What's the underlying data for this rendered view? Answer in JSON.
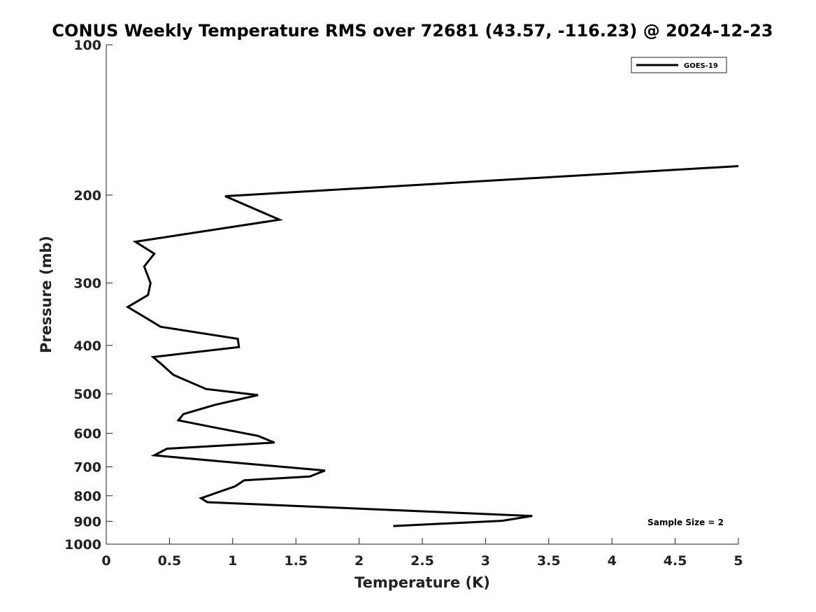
{
  "chart_data": {
    "type": "line",
    "title": "CONUS Weekly Temperature RMS over 72681 (43.57, -116.23) @ 2024-12-23",
    "xlabel": "Temperature (K)",
    "ylabel": "Pressure (mb)",
    "xlim": [
      0,
      5
    ],
    "ylim": [
      100,
      1000
    ],
    "yscale": "log",
    "y_reversed": true,
    "grid": false,
    "legend_position": "top-right",
    "x_ticks": [
      "0",
      "0.5",
      "1",
      "1.5",
      "2",
      "2.5",
      "3",
      "3.5",
      "4",
      "4.5",
      "5"
    ],
    "y_ticks": [
      "100",
      "200",
      "300",
      "400",
      "500",
      "600",
      "700",
      "800",
      "900",
      "1000"
    ],
    "series": [
      {
        "name": "GOES-19",
        "color": "#000000",
        "x": [
          5.0,
          0.94,
          1.37,
          0.23,
          0.38,
          0.3,
          0.35,
          0.33,
          0.17,
          0.43,
          1.04,
          1.05,
          0.37,
          0.44,
          0.53,
          0.79,
          1.2,
          0.86,
          0.61,
          0.57,
          0.87,
          1.2,
          1.33,
          0.48,
          0.38,
          0.88,
          1.73,
          1.61,
          1.09,
          1.02,
          0.86,
          0.75,
          0.8,
          3.37,
          3.13,
          2.27
        ],
        "y": [
          175,
          201,
          224,
          248,
          262,
          278,
          300,
          317,
          335,
          367,
          388,
          403,
          422,
          437,
          458,
          489,
          503,
          526,
          549,
          565,
          585,
          607,
          626,
          644,
          664,
          682,
          712,
          732,
          745,
          766,
          791,
          809,
          824,
          878,
          898,
          920
        ]
      }
    ],
    "annotation": "Sample Size = 2"
  }
}
